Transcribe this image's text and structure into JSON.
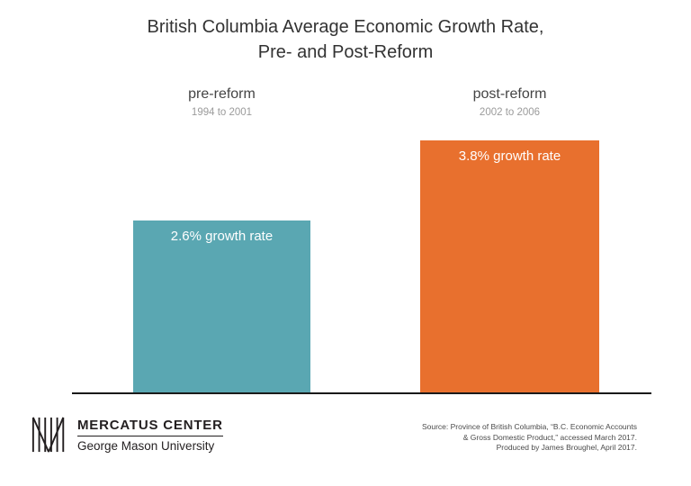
{
  "title": {
    "line1": "British Columbia Average Economic Growth Rate,",
    "line2": "Pre- and Post-Reform"
  },
  "chart_data": {
    "type": "bar",
    "title": "British Columbia Average Economic Growth Rate, Pre- and Post-Reform",
    "categories": [
      "pre-reform",
      "post-reform"
    ],
    "category_sublabels": [
      "1994 to 2001",
      "2002 to 2006"
    ],
    "values": [
      2.6,
      3.8
    ],
    "unit": "% growth rate",
    "bar_labels": [
      "2.6% growth rate",
      "3.8% growth rate"
    ],
    "colors": [
      "#5aa7b2",
      "#e8702e"
    ],
    "xlabel": "",
    "ylabel": "",
    "ylim": [
      0,
      4.2
    ],
    "grid": false,
    "legend": "none"
  },
  "footer": {
    "logo_name": "MERCATUS CENTER",
    "logo_subtitle": "George Mason University",
    "source_line1": "Source: Province of British Columbia, “B.C. Economic Accounts",
    "source_line2": "& Gross Domestic Product,” accessed March 2017.",
    "source_line3": "Produced by James Broughel, April 2017."
  }
}
